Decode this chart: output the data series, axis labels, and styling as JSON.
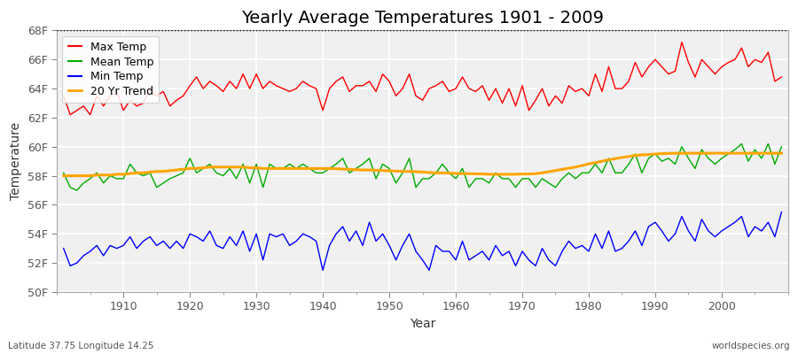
{
  "title": "Yearly Average Temperatures 1901 - 2009",
  "xlabel": "Year",
  "ylabel": "Temperature",
  "lat_lon_label": "Latitude 37.75 Longitude 14.25",
  "source_label": "worldspecies.org",
  "years": [
    1901,
    1902,
    1903,
    1904,
    1905,
    1906,
    1907,
    1908,
    1909,
    1910,
    1911,
    1912,
    1913,
    1914,
    1915,
    1916,
    1917,
    1918,
    1919,
    1920,
    1921,
    1922,
    1923,
    1924,
    1925,
    1926,
    1927,
    1928,
    1929,
    1930,
    1931,
    1932,
    1933,
    1934,
    1935,
    1936,
    1937,
    1938,
    1939,
    1940,
    1941,
    1942,
    1943,
    1944,
    1945,
    1946,
    1947,
    1948,
    1949,
    1950,
    1951,
    1952,
    1953,
    1954,
    1955,
    1956,
    1957,
    1958,
    1959,
    1960,
    1961,
    1962,
    1963,
    1964,
    1965,
    1966,
    1967,
    1968,
    1969,
    1970,
    1971,
    1972,
    1973,
    1974,
    1975,
    1976,
    1977,
    1978,
    1979,
    1980,
    1981,
    1982,
    1983,
    1984,
    1985,
    1986,
    1987,
    1988,
    1989,
    1990,
    1991,
    1992,
    1993,
    1994,
    1995,
    1996,
    1997,
    1998,
    1999,
    2000,
    2001,
    2002,
    2003,
    2004,
    2005,
    2006,
    2007,
    2008,
    2009
  ],
  "max_temp": [
    63.5,
    62.2,
    62.5,
    62.8,
    62.2,
    63.5,
    62.8,
    63.5,
    63.8,
    62.5,
    63.2,
    62.8,
    63.0,
    64.0,
    63.5,
    63.8,
    62.8,
    63.2,
    63.5,
    64.2,
    64.8,
    64.0,
    64.5,
    64.2,
    63.8,
    64.5,
    64.0,
    65.0,
    64.0,
    65.0,
    64.0,
    64.5,
    64.2,
    64.0,
    63.8,
    64.0,
    64.5,
    64.2,
    64.0,
    62.5,
    64.0,
    64.5,
    64.8,
    63.8,
    64.2,
    64.2,
    64.5,
    63.8,
    65.0,
    64.5,
    63.5,
    64.0,
    65.0,
    63.5,
    63.2,
    64.0,
    64.2,
    64.5,
    63.8,
    64.0,
    64.8,
    64.0,
    63.8,
    64.2,
    63.2,
    64.0,
    63.0,
    64.0,
    62.8,
    64.2,
    62.5,
    63.2,
    64.0,
    62.8,
    63.5,
    63.0,
    64.2,
    63.8,
    64.0,
    63.5,
    65.0,
    63.8,
    65.5,
    64.0,
    64.0,
    64.5,
    65.8,
    64.8,
    65.5,
    66.0,
    65.5,
    65.0,
    65.2,
    67.2,
    65.8,
    64.8,
    66.0,
    65.5,
    65.0,
    65.5,
    65.8,
    66.0,
    66.8,
    65.5,
    66.0,
    65.8,
    66.5,
    64.5,
    64.8
  ],
  "mean_temp": [
    58.2,
    57.2,
    57.0,
    57.5,
    57.8,
    58.2,
    57.5,
    58.0,
    57.8,
    57.8,
    58.8,
    58.2,
    58.0,
    58.2,
    57.2,
    57.5,
    57.8,
    58.0,
    58.2,
    59.2,
    58.2,
    58.5,
    58.8,
    58.2,
    58.0,
    58.5,
    57.8,
    58.8,
    57.5,
    58.8,
    57.2,
    58.8,
    58.5,
    58.5,
    58.8,
    58.5,
    58.8,
    58.5,
    58.2,
    58.2,
    58.5,
    58.8,
    59.2,
    58.2,
    58.5,
    58.8,
    59.2,
    57.8,
    58.8,
    58.5,
    57.5,
    58.2,
    59.2,
    57.2,
    57.8,
    57.8,
    58.2,
    58.8,
    58.2,
    57.8,
    58.5,
    57.2,
    57.8,
    57.8,
    57.5,
    58.2,
    57.8,
    57.8,
    57.2,
    57.8,
    57.8,
    57.2,
    57.8,
    57.5,
    57.2,
    57.8,
    58.2,
    57.8,
    58.2,
    58.2,
    58.8,
    58.2,
    59.2,
    58.2,
    58.2,
    58.8,
    59.5,
    58.2,
    59.2,
    59.5,
    59.0,
    59.2,
    58.8,
    60.0,
    59.2,
    58.5,
    59.8,
    59.2,
    58.8,
    59.2,
    59.5,
    59.8,
    60.2,
    59.0,
    59.8,
    59.2,
    60.2,
    58.8,
    60.0
  ],
  "min_temp": [
    53.0,
    51.8,
    52.0,
    52.5,
    52.8,
    53.2,
    52.5,
    53.2,
    53.0,
    53.2,
    53.8,
    53.0,
    53.5,
    53.8,
    53.2,
    53.5,
    53.0,
    53.5,
    53.0,
    54.0,
    53.8,
    53.5,
    54.2,
    53.2,
    53.0,
    53.8,
    53.2,
    54.2,
    52.8,
    54.0,
    52.2,
    54.0,
    53.8,
    54.0,
    53.2,
    53.5,
    54.0,
    53.8,
    53.5,
    51.5,
    53.2,
    54.0,
    54.5,
    53.5,
    54.2,
    53.2,
    54.8,
    53.5,
    54.0,
    53.2,
    52.2,
    53.2,
    54.0,
    52.8,
    52.2,
    51.5,
    53.2,
    52.8,
    52.8,
    52.2,
    53.5,
    52.2,
    52.5,
    52.8,
    52.2,
    53.2,
    52.5,
    52.8,
    51.8,
    52.8,
    52.2,
    51.8,
    53.0,
    52.2,
    51.8,
    52.8,
    53.5,
    53.0,
    53.2,
    52.8,
    54.0,
    53.0,
    54.2,
    52.8,
    53.0,
    53.5,
    54.2,
    53.2,
    54.5,
    54.8,
    54.2,
    53.5,
    54.0,
    55.2,
    54.2,
    53.5,
    55.0,
    54.2,
    53.8,
    54.2,
    54.5,
    54.8,
    55.2,
    53.8,
    54.5,
    54.2,
    54.8,
    53.8,
    55.5
  ],
  "trend_values": [
    58.0,
    58.0,
    58.0,
    58.0,
    58.0,
    58.05,
    58.05,
    58.05,
    58.1,
    58.1,
    58.15,
    58.2,
    58.2,
    58.25,
    58.3,
    58.3,
    58.35,
    58.4,
    58.45,
    58.5,
    58.5,
    58.55,
    58.6,
    58.6,
    58.6,
    58.6,
    58.6,
    58.6,
    58.55,
    58.55,
    58.5,
    58.5,
    58.5,
    58.5,
    58.5,
    58.5,
    58.5,
    58.5,
    58.5,
    58.5,
    58.5,
    58.48,
    58.46,
    58.44,
    58.42,
    58.4,
    58.4,
    58.38,
    58.36,
    58.34,
    58.32,
    58.3,
    58.3,
    58.28,
    58.26,
    58.22,
    58.2,
    58.2,
    58.18,
    58.16,
    58.15,
    58.14,
    58.13,
    58.12,
    58.1,
    58.1,
    58.1,
    58.1,
    58.1,
    58.12,
    58.12,
    58.14,
    58.2,
    58.28,
    58.36,
    58.44,
    58.52,
    58.6,
    58.7,
    58.82,
    58.9,
    59.0,
    59.1,
    59.18,
    59.26,
    59.32,
    59.4,
    59.44,
    59.46,
    59.5,
    59.52,
    59.54,
    59.55,
    59.55,
    59.55,
    59.55,
    59.55,
    59.55,
    59.55,
    59.55,
    59.55,
    59.55,
    59.55,
    59.55,
    59.55,
    59.55,
    59.55,
    59.55,
    59.55
  ],
  "ylim": [
    50,
    68
  ],
  "yticks": [
    50,
    52,
    54,
    56,
    58,
    60,
    62,
    64,
    66,
    68
  ],
  "ytick_labels": [
    "50F",
    "52F",
    "54F",
    "56F",
    "58F",
    "60F",
    "62F",
    "64F",
    "66F",
    "68F"
  ],
  "xticks": [
    1910,
    1920,
    1930,
    1940,
    1950,
    1960,
    1970,
    1980,
    1990,
    2000
  ],
  "max_color": "#ff0000",
  "mean_color": "#00aa00",
  "min_color": "#0000ff",
  "trend_color": "#ffa500",
  "fig_bg_color": "#ffffff",
  "plot_bg_color": "#f0f0f0",
  "grid_color": "#ffffff",
  "dotted_line_y": 68,
  "title_fontsize": 14,
  "axis_label_fontsize": 10,
  "tick_fontsize": 9,
  "legend_fontsize": 9
}
